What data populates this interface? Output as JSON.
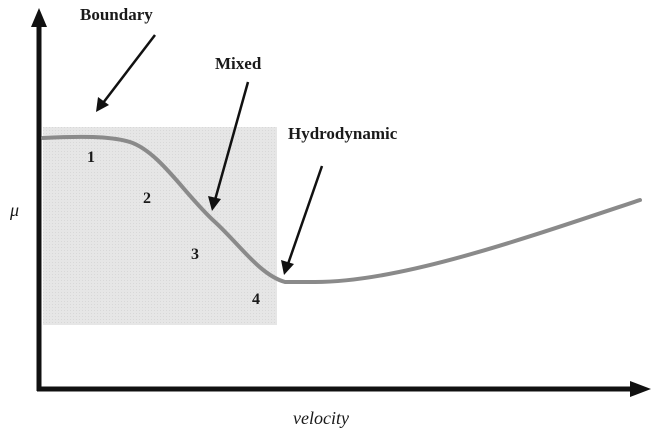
{
  "diagram": {
    "xlabel": "velocity",
    "ylabel": "μ",
    "regime_labels": {
      "boundary": "Boundary",
      "mixed": "Mixed",
      "hydrodynamic": "Hydrodynamic"
    },
    "point_labels": [
      "1",
      "2",
      "3",
      "4"
    ],
    "colors": {
      "axis": "#111111",
      "curve": "#8a8a8a",
      "shaded_region": "#e3e3e3",
      "arrow": "#111111",
      "text": "#1a1a1a"
    }
  }
}
